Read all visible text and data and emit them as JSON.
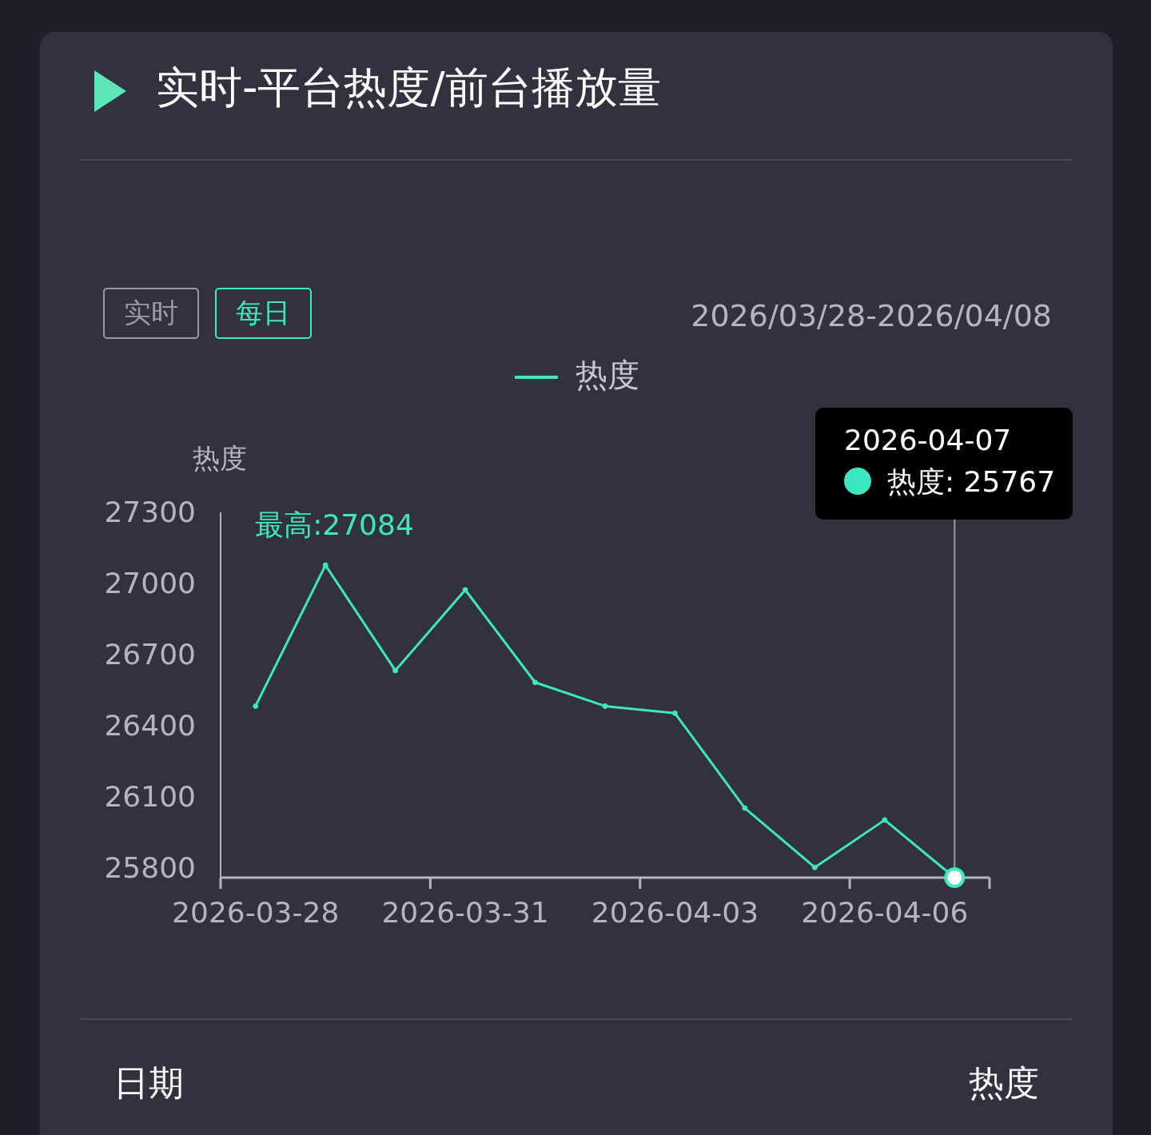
{
  "chart_data": {
    "type": "line",
    "title": "实时-平台热度/前台播放量",
    "subtitle": "2026/03/28-2026/04/08",
    "ylabel": "热度",
    "categories": [
      "2026-03-28",
      null,
      null,
      "2026-03-31",
      null,
      null,
      "2026-04-03",
      null,
      null,
      "2026-04-06",
      null
    ],
    "series": [
      {
        "name": "热度",
        "color": "#3de8c0",
        "values": [
          26490,
          27084,
          26640,
          26980,
          26590,
          26490,
          26460,
          26060,
          25810,
          26010,
          25767
        ]
      }
    ],
    "ylim": [
      25767,
      27300
    ],
    "yticks": [
      25800,
      26100,
      26400,
      26700,
      27000,
      27300
    ],
    "legend": "top",
    "marker": "circle",
    "line_style": "solid",
    "annotations": [
      "实时",
      "每日",
      "最高:27084",
      "2026-04-07",
      "热度: 25767",
      "日期",
      "热度"
    ]
  }
}
